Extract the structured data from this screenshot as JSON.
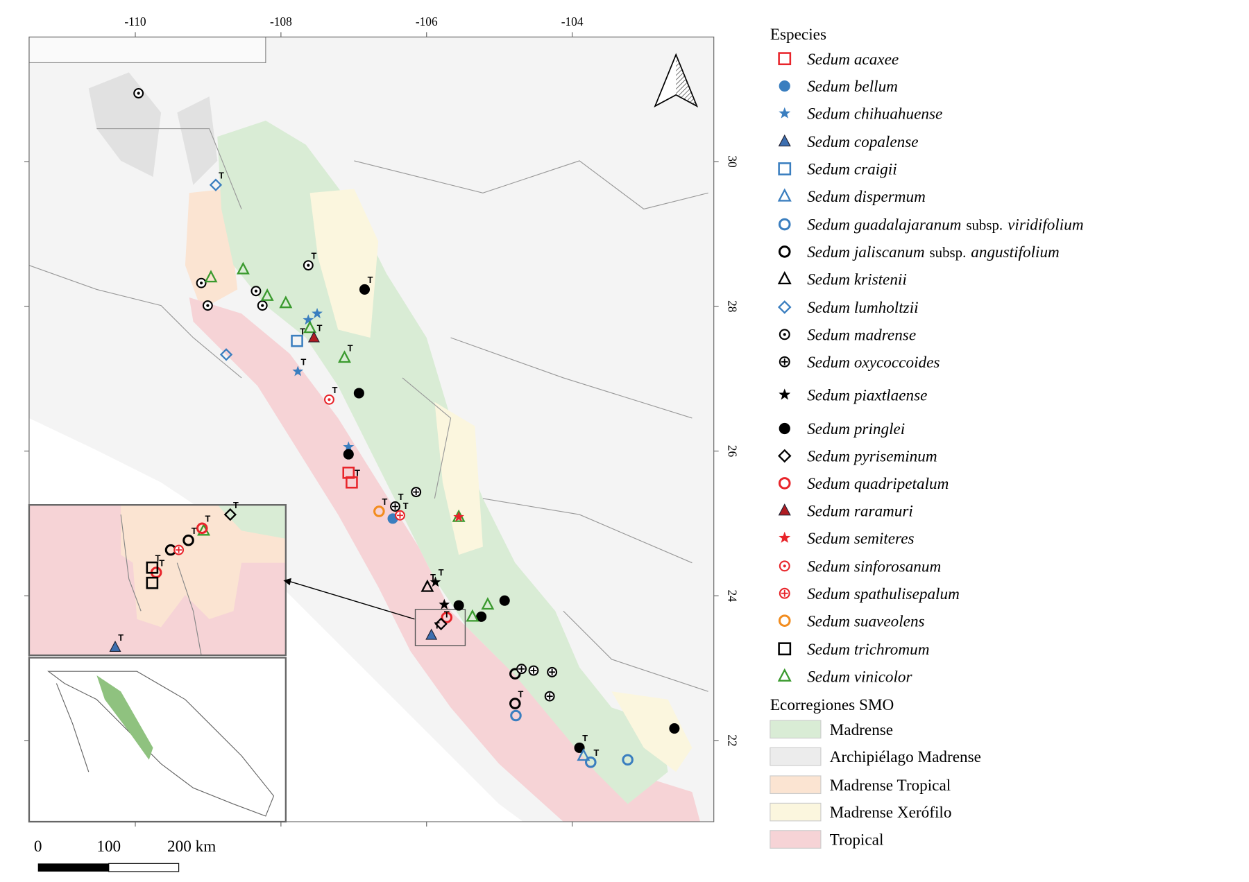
{
  "map": {
    "top_ticks": [
      "-110",
      "-108",
      "-106",
      "-104"
    ],
    "right_ticks": [
      "30",
      "28",
      "26",
      "24",
      "22"
    ],
    "type_label": "T",
    "scale_labels": [
      "0",
      "100",
      "200 km"
    ]
  },
  "legend": {
    "species_title": "Especies",
    "species": [
      {
        "name": "Sedum acaxee"
      },
      {
        "name": "Sedum bellum"
      },
      {
        "name": "Sedum chihuahuense"
      },
      {
        "name": "Sedum copalense"
      },
      {
        "name": "Sedum craigii"
      },
      {
        "name": "Sedum dispermum"
      },
      {
        "name": "Sedum guadalajaranum",
        "rank": "subsp.",
        "infra": "viridifolium"
      },
      {
        "name": "Sedum jaliscanum",
        "rank": "subsp.",
        "infra": "angustifolium"
      },
      {
        "name": "Sedum kristenii"
      },
      {
        "name": "Sedum lumholtzii"
      },
      {
        "name": "Sedum madrense"
      },
      {
        "name": "Sedum oxycoccoides"
      },
      {
        "name": "Sedum piaxtlaense"
      },
      {
        "name": "Sedum pringlei"
      },
      {
        "name": "Sedum pyriseminum"
      },
      {
        "name": "Sedum quadripetalum"
      },
      {
        "name": "Sedum raramuri"
      },
      {
        "name": "Sedum semiteres"
      },
      {
        "name": "Sedum sinforosanum"
      },
      {
        "name": "Sedum spathulisepalum"
      },
      {
        "name": "Sedum suaveolens"
      },
      {
        "name": "Sedum trichromum"
      },
      {
        "name": "Sedum vinicolor"
      }
    ],
    "ecoregions_title": "Ecorregiones SMO",
    "ecoregions": [
      "Madrense",
      "Archipiélago Madrense",
      "Madrense Tropical",
      "Madrense Xerófilo",
      "Tropical"
    ]
  }
}
